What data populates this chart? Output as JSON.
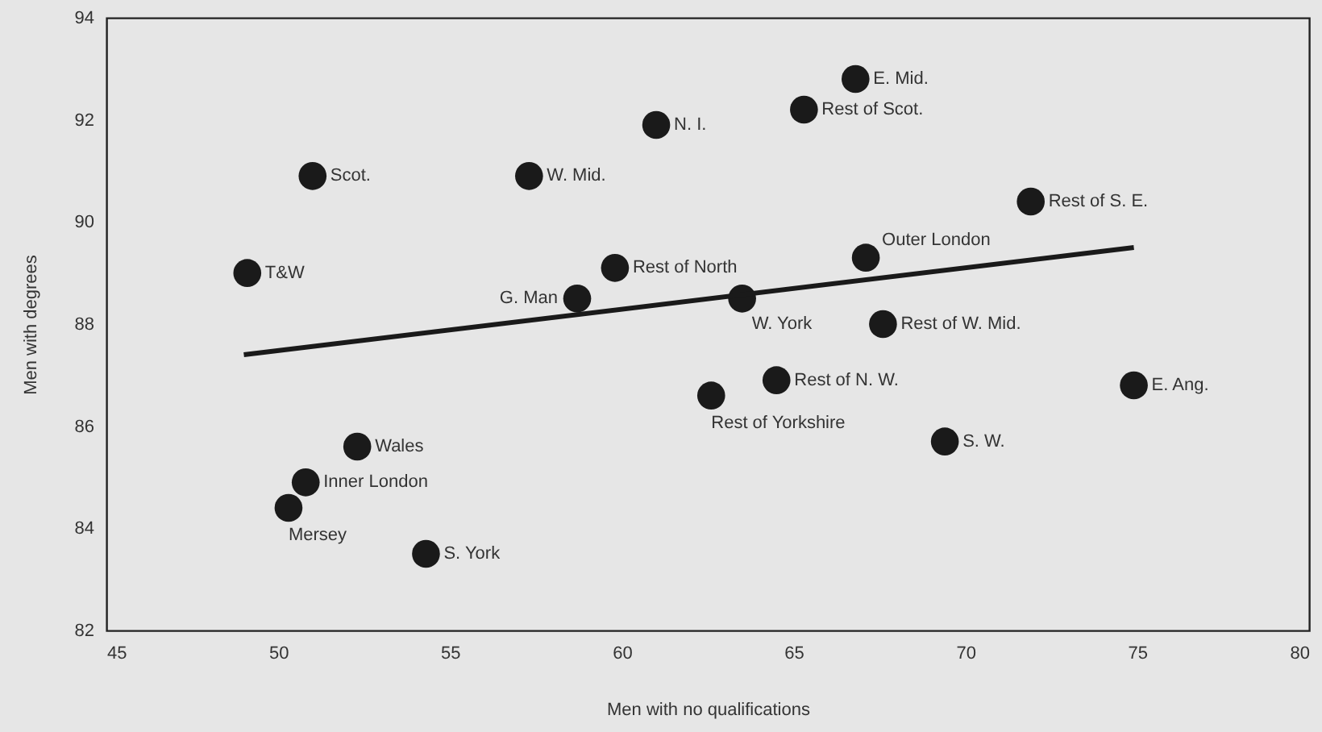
{
  "chart_data": {
    "type": "scatter",
    "xlabel": "Men with no qualifications",
    "ylabel": "Men with degrees",
    "xlim": [
      45,
      80
    ],
    "xticks": [
      45,
      50,
      55,
      60,
      65,
      70,
      75,
      80
    ],
    "ylim": [
      82,
      94
    ],
    "yticks": [
      82,
      84,
      86,
      88,
      90,
      92,
      94
    ],
    "grid": false,
    "series": [
      {
        "marker": "circle",
        "color": "#1a1a1a",
        "x": [
          49.1,
          51.0,
          57.3,
          61.0,
          66.8,
          65.3,
          71.9,
          67.1,
          59.8,
          58.7,
          63.5,
          67.6,
          62.6,
          64.5,
          74.9,
          69.4,
          52.3,
          50.8,
          50.3,
          54.3
        ],
        "values": [
          89.0,
          90.9,
          90.9,
          91.9,
          92.8,
          92.2,
          90.4,
          89.3,
          89.1,
          88.5,
          88.5,
          88.0,
          86.6,
          86.9,
          86.8,
          85.7,
          85.6,
          84.9,
          84.4,
          83.5
        ]
      },
      {
        "type": "line",
        "color": "#1a1a1a",
        "x": [
          49.0,
          74.9
        ],
        "values": [
          87.4,
          89.5
        ]
      }
    ],
    "annotations": [
      {
        "text": "T&W",
        "x": 49.1,
        "y": 89.0
      },
      {
        "text": "Scot.",
        "x": 51.0,
        "y": 90.9
      },
      {
        "text": "W. Mid.",
        "x": 57.3,
        "y": 90.9
      },
      {
        "text": "N. I.",
        "x": 61.0,
        "y": 91.9
      },
      {
        "text": "E. Mid.",
        "x": 66.8,
        "y": 92.8
      },
      {
        "text": "Rest of Scot.",
        "x": 65.3,
        "y": 92.2
      },
      {
        "text": "Rest of S. E.",
        "x": 71.9,
        "y": 90.4
      },
      {
        "text": "Outer London",
        "x": 67.1,
        "y": 89.3
      },
      {
        "text": "Rest of North",
        "x": 59.8,
        "y": 89.1
      },
      {
        "text": "G. Man",
        "x": 58.7,
        "y": 88.5
      },
      {
        "text": "W. York",
        "x": 63.5,
        "y": 88.5
      },
      {
        "text": "Rest of W. Mid.",
        "x": 67.6,
        "y": 88.0
      },
      {
        "text": "Rest of Yorkshire",
        "x": 62.6,
        "y": 86.6
      },
      {
        "text": "Rest of N. W.",
        "x": 64.5,
        "y": 86.9
      },
      {
        "text": "E. Ang.",
        "x": 74.9,
        "y": 86.8
      },
      {
        "text": "S. W.",
        "x": 69.4,
        "y": 85.7
      },
      {
        "text": "Wales",
        "x": 52.3,
        "y": 85.6
      },
      {
        "text": "Inner London",
        "x": 50.8,
        "y": 84.9
      },
      {
        "text": "Mersey",
        "x": 50.3,
        "y": 84.4
      },
      {
        "text": "S. York",
        "x": 54.3,
        "y": 83.5
      }
    ]
  }
}
